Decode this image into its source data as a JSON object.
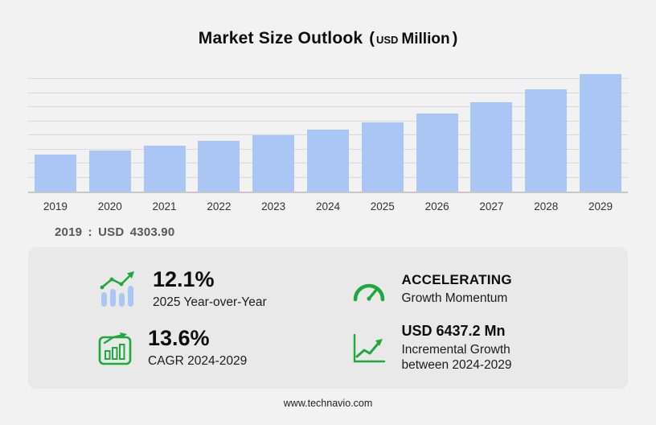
{
  "title": {
    "main": "Market Size Outlook",
    "paren_open": "(",
    "unit_currency": "USD",
    "unit_scale": "Million",
    "paren_close": ")"
  },
  "chart_data": {
    "type": "bar",
    "title": "Market Size Outlook (USD Million)",
    "unit": "USD Million",
    "categories": [
      "2019",
      "2020",
      "2021",
      "2022",
      "2023",
      "2024",
      "2025",
      "2026",
      "2027",
      "2028",
      "2029"
    ],
    "values": [
      4303.9,
      4780,
      5320,
      5930,
      6520,
      7202,
      8073,
      9080,
      10350,
      11900,
      13639
    ],
    "labeled_points": {
      "2019": 4303.9
    },
    "ylim": [
      0,
      14000
    ],
    "grid": "horizontal",
    "legend": "none",
    "xlabel": "",
    "ylabel": ""
  },
  "annotation_2019": "2019 : USD 4303.90",
  "stats": {
    "yoy": {
      "value": "12.1%",
      "label": "2025 Year-over-Year"
    },
    "momentum": {
      "value": "ACCELERATING",
      "label": "Growth Momentum"
    },
    "cagr": {
      "value": "13.6%",
      "label": "CAGR 2024-2029"
    },
    "incremental": {
      "value": "USD 6437.2 Mn",
      "label": "Incremental Growth between 2024-2029"
    }
  },
  "footer": {
    "url": "www.technavio.com"
  },
  "colors": {
    "bar": "#a9c6f5",
    "green": "#1fa83c",
    "panel": "#e9e9ea",
    "background": "#f2f2f3"
  }
}
